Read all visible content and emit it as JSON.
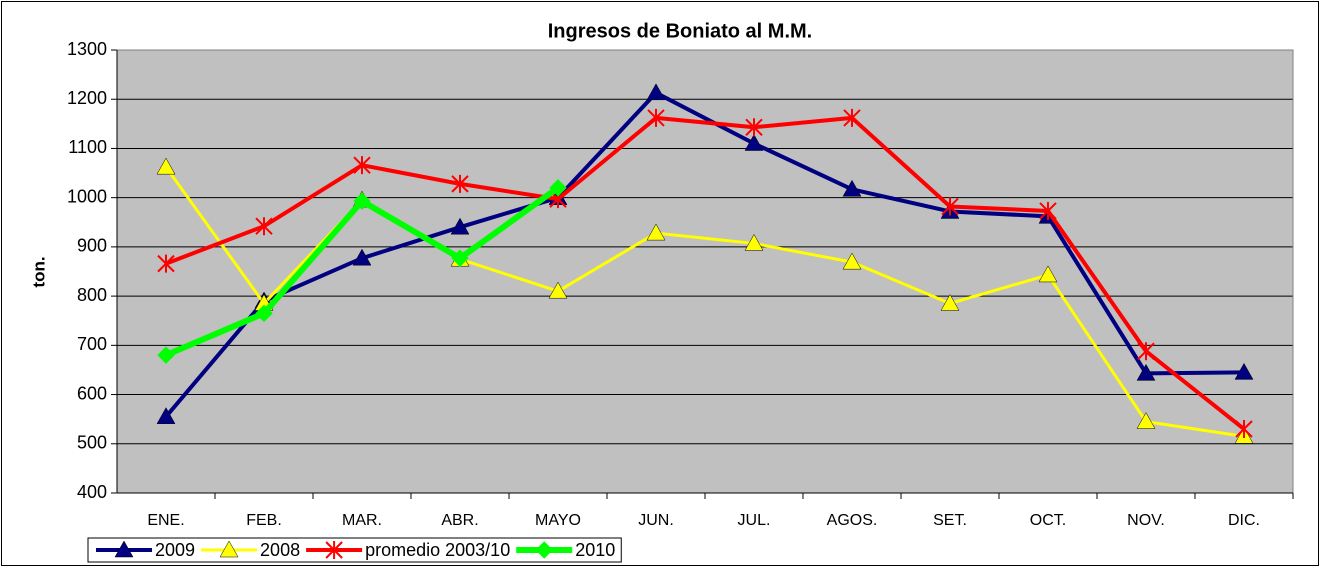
{
  "chart_data": {
    "type": "line",
    "title": "Ingresos de Boniato al M.M.",
    "y_label": "ton.",
    "categories": [
      "ENE.",
      "FEB.",
      "MAR.",
      "ABR.",
      "MAYO",
      "JUN.",
      "JUL.",
      "AGOS.",
      "SET.",
      "OCT.",
      "NOV.",
      "DIC."
    ],
    "ylim": [
      400,
      1300
    ],
    "yticks": [
      400,
      500,
      600,
      700,
      800,
      900,
      1000,
      1100,
      1200,
      1300
    ],
    "grid": true,
    "plot_background": "#c0c0c0",
    "legend": "bottom",
    "series": [
      {
        "name": "2009",
        "color": "#000080",
        "marker": "triangle",
        "line_width": 4,
        "values": [
          555,
          790,
          877,
          940,
          1000,
          1213,
          1110,
          1017,
          972,
          962,
          643,
          645
        ]
      },
      {
        "name": "2008",
        "color": "#ffff00",
        "marker": "triangle",
        "line_width": 3,
        "values": [
          1062,
          785,
          995,
          875,
          810,
          928,
          907,
          869,
          785,
          843,
          545,
          515
        ]
      },
      {
        "name": "promedio 2003/10",
        "color": "#ff0000",
        "marker": "star",
        "line_width": 4,
        "values": [
          866,
          942,
          1066,
          1028,
          997,
          1162,
          1143,
          1162,
          982,
          973,
          688,
          530
        ]
      },
      {
        "name": "2010",
        "color": "#00ff00",
        "marker": "diamond",
        "line_width": 6,
        "values": [
          680,
          765,
          993,
          877,
          1020,
          null,
          null,
          null,
          null,
          null,
          null,
          null
        ]
      }
    ]
  }
}
